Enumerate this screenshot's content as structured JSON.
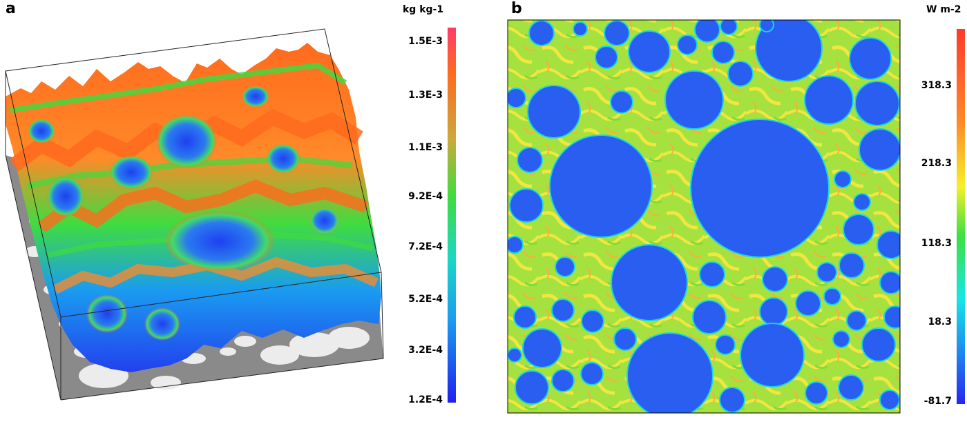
{
  "panel_a": {
    "label": "a",
    "colorbar": {
      "unit": "kg kg-1",
      "ticks": [
        "1.5E-3",
        "1.3E-3",
        "1.1E-3",
        "9.2E-4",
        "7.2E-4",
        "5.2E-4",
        "3.2E-4",
        "1.2E-4"
      ],
      "colors": [
        "#ff4a4a",
        "#ff6a1e",
        "#d9a43c",
        "#3fdc3f",
        "#1bd6c4",
        "#1a9cf0",
        "#1e5ff0",
        "#2424ee"
      ]
    }
  },
  "panel_b": {
    "label": "b",
    "colorbar": {
      "unit": "W m-2",
      "ticks": [
        "318.3",
        "218.3",
        "118.3",
        "18.3",
        "-81.7"
      ],
      "colors": [
        "#ff4a2a",
        "#ff7a2a",
        "#f5f02a",
        "#3fe03f",
        "#16e6e6",
        "#1e90f0",
        "#2626ee"
      ]
    }
  },
  "colors": {
    "blue": "#2a5ef0",
    "field_yellow": "#f2e640",
    "field_green": "#6ee03c",
    "surface_orange": "#ff7020",
    "ground_gray": "#8a8a8a",
    "ground_white": "#ececec"
  }
}
